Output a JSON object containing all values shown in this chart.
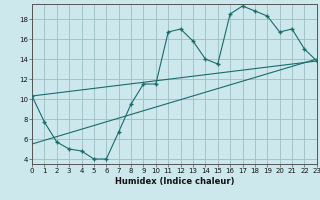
{
  "title": "",
  "xlabel": "Humidex (Indice chaleur)",
  "bg_color": "#cce8ec",
  "grid_color": "#9bbfc4",
  "line_color": "#1a6b6b",
  "line1_x": [
    0,
    1,
    2,
    3,
    4,
    5,
    6,
    7,
    8,
    9,
    10,
    11,
    12,
    13,
    14,
    15,
    16,
    17,
    18,
    19,
    20,
    21,
    22,
    23
  ],
  "line1_y": [
    10.3,
    7.7,
    5.7,
    5.0,
    4.8,
    4.0,
    4.0,
    6.7,
    9.5,
    11.5,
    11.5,
    16.7,
    17.0,
    15.8,
    14.0,
    13.5,
    18.5,
    19.3,
    18.8,
    18.3,
    16.7,
    17.0,
    15.0,
    13.8
  ],
  "line2_x": [
    0,
    23
  ],
  "line2_y": [
    5.5,
    14.0
  ],
  "line3_x": [
    0,
    23
  ],
  "line3_y": [
    10.3,
    13.8
  ],
  "xlim": [
    0,
    23
  ],
  "ylim": [
    3.5,
    19.5
  ],
  "xticks": [
    0,
    1,
    2,
    3,
    4,
    5,
    6,
    7,
    8,
    9,
    10,
    11,
    12,
    13,
    14,
    15,
    16,
    17,
    18,
    19,
    20,
    21,
    22,
    23
  ],
  "yticks": [
    4,
    6,
    8,
    10,
    12,
    14,
    16,
    18
  ],
  "tick_fontsize": 5.0,
  "xlabel_fontsize": 6.0
}
